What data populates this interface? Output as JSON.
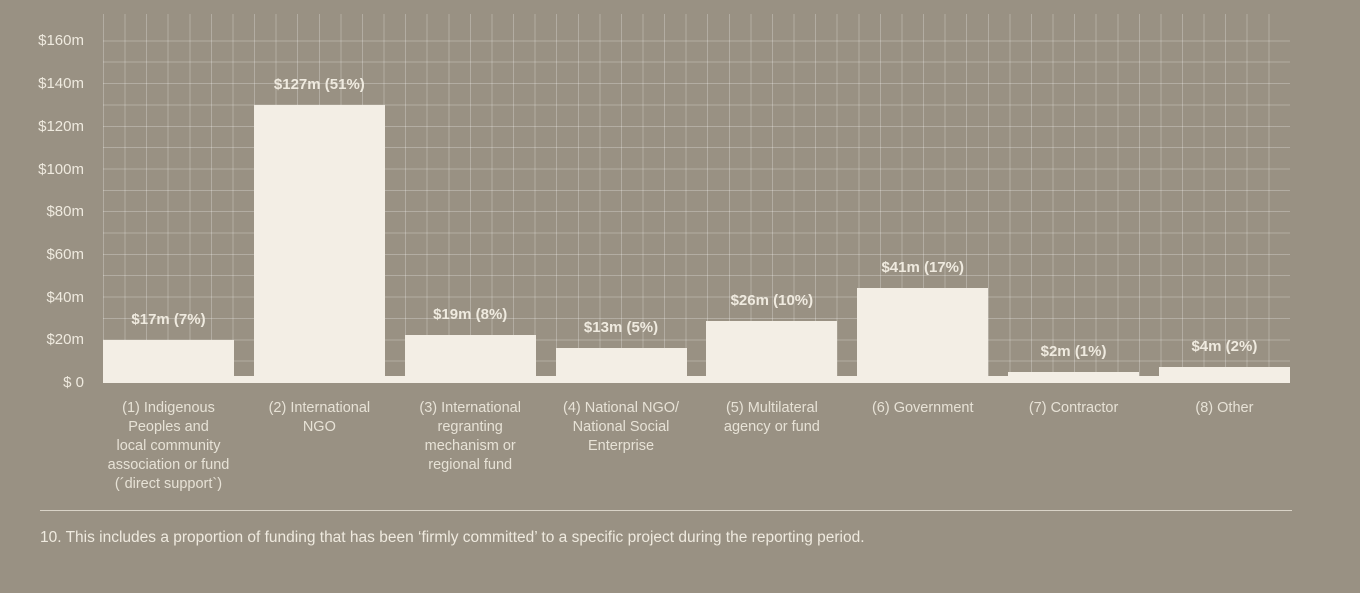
{
  "colors": {
    "background": "#999183",
    "bar": "#f3eee5",
    "grid_line": "rgba(255,255,255,0.25)",
    "divider": "#d9d3c7",
    "text": "#efeadf",
    "text_secondary": "#e7e2d6"
  },
  "chart_data": {
    "type": "bar",
    "title": "",
    "xlabel": "",
    "ylabel": "",
    "unit": "$m",
    "grid": true,
    "legend": null,
    "ylim": [
      0,
      172
    ],
    "categories": [
      "(1) Indigenous\nPeoples and\nlocal community\nassociation or fund\n(´direct support`)",
      "(2) International\nNGO",
      "(3) International\nregranting\nmechanism or\nregional fund",
      "(4) National NGO/\nNational Social\nEnterprise",
      "(5) Multilateral\nagency or fund",
      "(6) Government",
      "(7) Contractor",
      "(8) Other"
    ],
    "values": [
      17,
      127,
      19,
      13,
      26,
      41,
      2,
      4
    ],
    "percentages": [
      7,
      51,
      8,
      5,
      10,
      17,
      1,
      2
    ],
    "bar_labels": [
      "$17m (7%)",
      "$127m (51%)",
      "$19m (8%)",
      "$13m (5%)",
      "$26m (10%)",
      "$41m (17%)",
      "$2m (1%)",
      "$4m (2%)"
    ],
    "y_ticks": [
      {
        "value": 160,
        "label": "$160m"
      },
      {
        "value": 140,
        "label": "$140m"
      },
      {
        "value": 120,
        "label": "$120m"
      },
      {
        "value": 100,
        "label": "$100m"
      },
      {
        "value": 80,
        "label": "$80m"
      },
      {
        "value": 60,
        "label": "$60m"
      },
      {
        "value": 40,
        "label": "$40m"
      },
      {
        "value": 20,
        "label": "$20m"
      },
      {
        "value": 0,
        "label": "$ 0"
      }
    ]
  },
  "footnote": "10. This includes a proportion of funding that has been ‘firmly committed’ to a specific project during the reporting period."
}
